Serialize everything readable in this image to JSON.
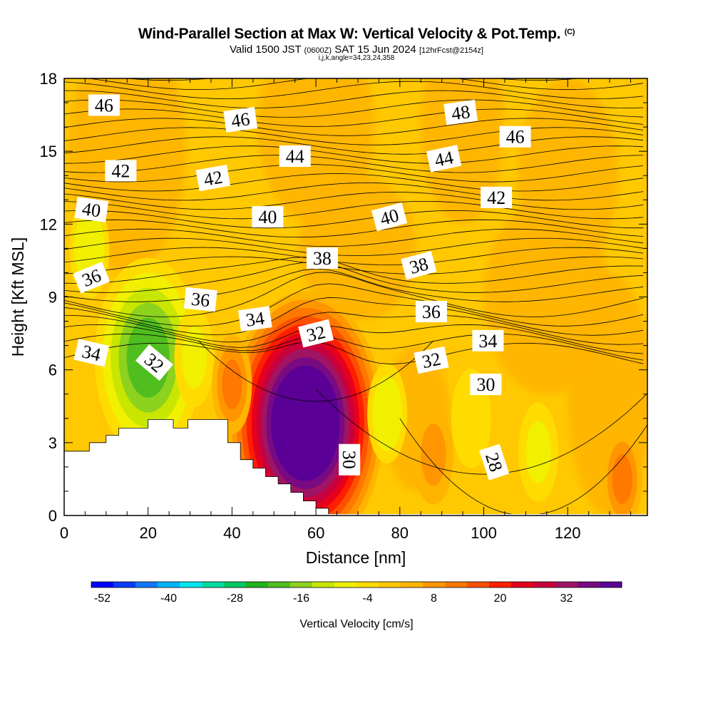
{
  "header": {
    "title": "Wind-Parallel Section at Max W: Vertical Velocity & Pot.Temp.",
    "title_tag": "(C)",
    "valid_prefix": "Valid 1500 JST",
    "valid_utc": "(0600Z)",
    "valid_date": "SAT 15 Jun 2024",
    "forecast": "[12hrFcst@2154z]",
    "params": "i,j,k,angle=34,23,24,358"
  },
  "colors": {
    "palette": [
      "#0000ff",
      "#0a3cff",
      "#1478ff",
      "#00b4ff",
      "#00e6f0",
      "#00dca0",
      "#00c864",
      "#1eb41e",
      "#50be1e",
      "#8cd21e",
      "#c8e600",
      "#f0f000",
      "#ffdc00",
      "#ffc800",
      "#ffb400",
      "#ff9600",
      "#ff7800",
      "#ff5000",
      "#ff1e00",
      "#e6001e",
      "#c8003c",
      "#a01464",
      "#780a82",
      "#5a0096"
    ],
    "terrain": "#ffffff",
    "contour": "#000000"
  },
  "chart_data": {
    "type": "heatmap",
    "title": "Wind-Parallel Section at Max W: Vertical Velocity & Pot.Temp.",
    "xlabel": "Distance [nm]",
    "ylabel": "Height [Kft MSL]",
    "xlim": [
      0,
      139
    ],
    "ylim": [
      0,
      18
    ],
    "xticks": [
      0,
      20,
      40,
      60,
      80,
      100,
      120
    ],
    "yticks": [
      0,
      3,
      6,
      9,
      12,
      15,
      18
    ],
    "colorbar": {
      "label": "Vertical Velocity [cm/s]",
      "ticks": [
        -52,
        -40,
        -28,
        -16,
        -4,
        8,
        20,
        32
      ],
      "min": -54,
      "step": 4,
      "bins": 24
    },
    "vertical_velocity_features": [
      {
        "x": 57.5,
        "y": 3.8,
        "w": 48,
        "note": "max updraft core"
      },
      {
        "x": 20,
        "y": 6.5,
        "w": -20,
        "note": "downdraft"
      },
      {
        "x": 77,
        "y": 4.2,
        "w": -10
      },
      {
        "x": 6,
        "y": 11,
        "w": -10
      },
      {
        "x": 31,
        "y": 6.5,
        "w": -9
      },
      {
        "x": 97,
        "y": 4,
        "w": -6
      },
      {
        "x": 113,
        "y": 2.6,
        "w": -7
      },
      {
        "x": 133,
        "y": 1.5,
        "w": 12
      },
      {
        "x": 88,
        "y": 2.5,
        "w": 9
      },
      {
        "x": 40,
        "y": 5.4,
        "w": 12
      }
    ],
    "terrain_height_kft": [
      {
        "x": 0,
        "h": 2.65
      },
      {
        "x": 6,
        "h": 2.65
      },
      {
        "x": 6,
        "h": 3.0
      },
      {
        "x": 10,
        "h": 3.0
      },
      {
        "x": 10,
        "h": 3.3
      },
      {
        "x": 13,
        "h": 3.3
      },
      {
        "x": 13,
        "h": 3.6
      },
      {
        "x": 20,
        "h": 3.6
      },
      {
        "x": 20,
        "h": 3.95
      },
      {
        "x": 26,
        "h": 3.95
      },
      {
        "x": 26,
        "h": 3.6
      },
      {
        "x": 29.5,
        "h": 3.6
      },
      {
        "x": 29.5,
        "h": 3.95
      },
      {
        "x": 39,
        "h": 3.95
      },
      {
        "x": 39,
        "h": 3.0
      },
      {
        "x": 42,
        "h": 3.0
      },
      {
        "x": 42,
        "h": 2.3
      },
      {
        "x": 45,
        "h": 2.3
      },
      {
        "x": 45,
        "h": 1.95
      },
      {
        "x": 48,
        "h": 1.95
      },
      {
        "x": 48,
        "h": 1.6
      },
      {
        "x": 51,
        "h": 1.6
      },
      {
        "x": 51,
        "h": 1.3
      },
      {
        "x": 54,
        "h": 1.3
      },
      {
        "x": 54,
        "h": 0.95
      },
      {
        "x": 57,
        "h": 0.95
      },
      {
        "x": 57,
        "h": 0.6
      },
      {
        "x": 60,
        "h": 0.6
      },
      {
        "x": 60,
        "h": 0.3
      },
      {
        "x": 63,
        "h": 0.3
      },
      {
        "x": 63,
        "h": 0
      },
      {
        "x": 139,
        "h": 0
      }
    ],
    "potential_temperature_labels": [
      {
        "text": "46",
        "x": 9.5,
        "y": 16.9,
        "rot": 0
      },
      {
        "text": "46",
        "x": 42,
        "y": 16.3,
        "rot": 8
      },
      {
        "text": "48",
        "x": 94.5,
        "y": 16.6,
        "rot": 8
      },
      {
        "text": "46",
        "x": 107.5,
        "y": 15.6,
        "rot": 0
      },
      {
        "text": "44",
        "x": 55,
        "y": 14.8,
        "rot": 0
      },
      {
        "text": "44",
        "x": 90.5,
        "y": 14.7,
        "rot": 12
      },
      {
        "text": "42",
        "x": 13.5,
        "y": 14.2,
        "rot": 0
      },
      {
        "text": "42",
        "x": 35.5,
        "y": 13.9,
        "rot": 10
      },
      {
        "text": "42",
        "x": 103,
        "y": 13.1,
        "rot": 0
      },
      {
        "text": "40",
        "x": 6.5,
        "y": 12.6,
        "rot": -8
      },
      {
        "text": "40",
        "x": 48.5,
        "y": 12.3,
        "rot": 0
      },
      {
        "text": "40",
        "x": 77.5,
        "y": 12.3,
        "rot": 15
      },
      {
        "text": "38",
        "x": 61.5,
        "y": 10.6,
        "rot": 0
      },
      {
        "text": "38",
        "x": 84.5,
        "y": 10.3,
        "rot": 15
      },
      {
        "text": "36",
        "x": 6.5,
        "y": 9.8,
        "rot": 22
      },
      {
        "text": "36",
        "x": 32.5,
        "y": 8.9,
        "rot": -6
      },
      {
        "text": "36",
        "x": 87.5,
        "y": 8.4,
        "rot": 0
      },
      {
        "text": "34",
        "x": 45.5,
        "y": 8.1,
        "rot": 8
      },
      {
        "text": "34",
        "x": 101,
        "y": 7.2,
        "rot": 0
      },
      {
        "text": "34",
        "x": 6.5,
        "y": 6.7,
        "rot": -13
      },
      {
        "text": "32",
        "x": 60,
        "y": 7.5,
        "rot": 14
      },
      {
        "text": "32",
        "x": 87.5,
        "y": 6.4,
        "rot": 12
      },
      {
        "text": "32",
        "x": 21.5,
        "y": 6.3,
        "rot": -40
      },
      {
        "text": "30",
        "x": 100.5,
        "y": 5.4,
        "rot": 0
      },
      {
        "text": "30",
        "x": 68,
        "y": 2.3,
        "rot": -90
      },
      {
        "text": "28",
        "x": 102.5,
        "y": 2.2,
        "rot": -72
      }
    ]
  }
}
